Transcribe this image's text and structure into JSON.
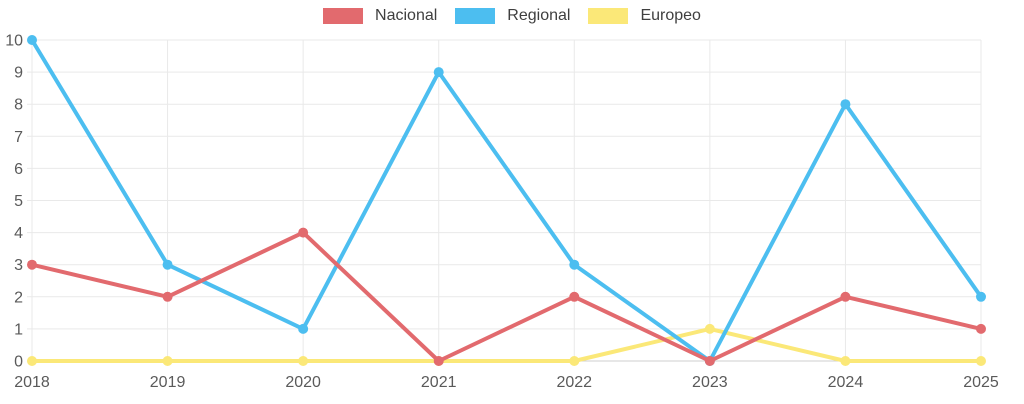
{
  "chart_data": {
    "type": "line",
    "title": "",
    "xlabel": "",
    "ylabel": "",
    "x": [
      "2018",
      "2019",
      "2020",
      "2021",
      "2022",
      "2023",
      "2024",
      "2025"
    ],
    "series": [
      {
        "name": "Nacional",
        "color": "#e26a6e",
        "values": [
          3,
          2,
          4,
          0,
          2,
          0,
          2,
          1
        ]
      },
      {
        "name": "Regional",
        "color": "#4cbef0",
        "values": [
          10,
          3,
          1,
          9,
          3,
          0,
          8,
          2
        ]
      },
      {
        "name": "Europeo",
        "color": "#fbe878",
        "values": [
          0,
          0,
          0,
          0,
          0,
          1,
          0,
          0
        ]
      }
    ],
    "ylim": [
      0,
      10
    ],
    "yticks": [
      0,
      1,
      2,
      3,
      4,
      5,
      6,
      7,
      8,
      9,
      10
    ],
    "legend_position": "top",
    "grid": true
  },
  "style": {
    "grid_color": "#e9e9e9",
    "zero_line_color": "#cfcfcf",
    "tick_text_color": "#5a5a5a",
    "legend_text_color": "#3f3f3f",
    "background": "#ffffff"
  }
}
